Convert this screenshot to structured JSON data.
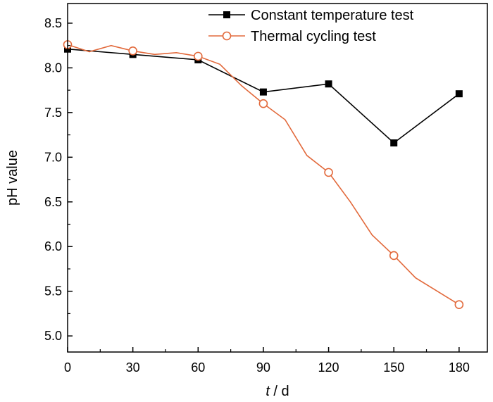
{
  "chart_data": {
    "type": "line",
    "xlabel_italic": "t",
    "xlabel_rest": " / d",
    "ylabel": "pH value",
    "xlim": [
      0,
      193
    ],
    "ylim": [
      4.82,
      8.72
    ],
    "x_ticks": [
      0,
      30,
      60,
      90,
      120,
      150,
      180
    ],
    "y_ticks": [
      5.0,
      5.5,
      6.0,
      6.5,
      7.0,
      7.5,
      8.0,
      8.5
    ],
    "y_tick_labels": [
      "5.0",
      "5.5",
      "6.0",
      "6.5",
      "7.0",
      "7.5",
      "8.0",
      "8.5"
    ],
    "legend_position": "top-right",
    "series": [
      {
        "name": "Constant temperature test",
        "color": "#000000",
        "marker": "filled-square",
        "x": [
          0,
          30,
          60,
          90,
          120,
          150,
          180
        ],
        "values": [
          8.21,
          8.15,
          8.09,
          7.73,
          7.82,
          7.16,
          7.71
        ]
      },
      {
        "name": "Thermal cycling test",
        "color": "#e2693b",
        "marker": "open-circle",
        "marker_x": [
          0,
          30,
          60,
          90,
          120,
          150,
          180
        ],
        "marker_values": [
          8.26,
          8.19,
          8.13,
          7.6,
          6.83,
          5.9,
          5.35
        ],
        "x": [
          0,
          10,
          20,
          30,
          40,
          50,
          60,
          70,
          80,
          90,
          100,
          110,
          120,
          130,
          140,
          150,
          160,
          170,
          180
        ],
        "values": [
          8.26,
          8.18,
          8.25,
          8.19,
          8.15,
          8.17,
          8.13,
          8.04,
          7.8,
          7.6,
          7.42,
          7.02,
          6.83,
          6.5,
          6.13,
          5.9,
          5.65,
          5.5,
          5.35
        ]
      }
    ]
  }
}
